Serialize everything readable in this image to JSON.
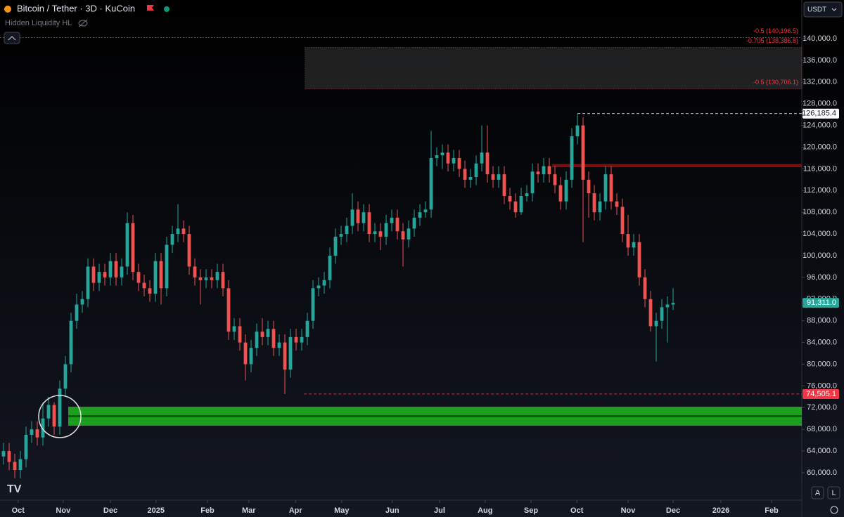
{
  "chart_data": {
    "type": "candlestick",
    "title": "Bitcoin / Tether · 3D · KuCoin",
    "indicator": "Hidden Liquidity HL",
    "currency": "USDT",
    "controls": [
      "A",
      "L"
    ],
    "up_color": "#26a69a",
    "down_color": "#ef5350",
    "xlim": [
      -0.625,
      141.875
    ],
    "ylim": [
      54950,
      147120
    ],
    "xticks": [
      {
        "value": 2.6,
        "label": "Oct"
      },
      {
        "value": 10.6,
        "label": "Nov"
      },
      {
        "value": 19,
        "label": "Dec"
      },
      {
        "value": 27.1,
        "label": "2025"
      },
      {
        "value": 36.25,
        "label": "Feb"
      },
      {
        "value": 43.6,
        "label": "Mar"
      },
      {
        "value": 51.9,
        "label": "Apr"
      },
      {
        "value": 60.1,
        "label": "May"
      },
      {
        "value": 69.1,
        "label": "Jun"
      },
      {
        "value": 77.5,
        "label": "Jul"
      },
      {
        "value": 85.6,
        "label": "Aug"
      },
      {
        "value": 93.75,
        "label": "Sep"
      },
      {
        "value": 101.9,
        "label": "Oct"
      },
      {
        "value": 111,
        "label": "Nov"
      },
      {
        "value": 119,
        "label": "Dec"
      },
      {
        "value": 127.5,
        "label": "2026"
      },
      {
        "value": 136.5,
        "label": "Feb"
      }
    ],
    "yticks": [
      {
        "value": 60000,
        "label": "60,000.0"
      },
      {
        "value": 64000,
        "label": "64,000.0"
      },
      {
        "value": 68000,
        "label": "68,000.0"
      },
      {
        "value": 72000,
        "label": "72,000.0"
      },
      {
        "value": 76000,
        "label": "76,000.0"
      },
      {
        "value": 80000,
        "label": "80,000.0"
      },
      {
        "value": 84000,
        "label": "84,000.0"
      },
      {
        "value": 88000,
        "label": "88,000.0"
      },
      {
        "value": 92000,
        "label": "92,000.0"
      },
      {
        "value": 96000,
        "label": "96,000.0"
      },
      {
        "value": 100000,
        "label": "100,000.0"
      },
      {
        "value": 104000,
        "label": "104,000.0"
      },
      {
        "value": 108000,
        "label": "108,000.0"
      },
      {
        "value": 112000,
        "label": "112,000.0"
      },
      {
        "value": 116000,
        "label": "116,000.0"
      },
      {
        "value": 120000,
        "label": "120,000.0"
      },
      {
        "value": 124000,
        "label": "124,000.0"
      },
      {
        "value": 128000,
        "label": "128,000.0"
      },
      {
        "value": 132000,
        "label": "132,000.0"
      },
      {
        "value": 136000,
        "label": "136,000.0"
      },
      {
        "value": 140000,
        "label": "140,000.0"
      }
    ],
    "candles": [
      [
        63000,
        65500,
        61500,
        64000
      ],
      [
        64000,
        65500,
        60500,
        62000
      ],
      [
        62000,
        63500,
        59000,
        60500
      ],
      [
        60500,
        64000,
        59000,
        62500
      ],
      [
        62500,
        68500,
        61000,
        67000
      ],
      [
        67000,
        69500,
        65500,
        68000
      ],
      [
        68000,
        69500,
        65000,
        66500
      ],
      [
        66500,
        73000,
        65000,
        70000
      ],
      [
        70000,
        74000,
        68500,
        72500
      ],
      [
        72500,
        73000,
        67000,
        68500
      ],
      [
        68500,
        77000,
        67000,
        75500
      ],
      [
        75500,
        81500,
        74000,
        80000
      ],
      [
        80000,
        89500,
        78500,
        88000
      ],
      [
        88000,
        93000,
        86500,
        91000
      ],
      [
        91000,
        93500,
        89500,
        92000
      ],
      [
        92000,
        99500,
        90500,
        98000
      ],
      [
        98000,
        99500,
        93500,
        95000
      ],
      [
        95000,
        98500,
        93500,
        97000
      ],
      [
        97000,
        98500,
        94500,
        96000
      ],
      [
        96000,
        100500,
        94500,
        99000
      ],
      [
        99000,
        100500,
        94500,
        96000
      ],
      [
        96000,
        99500,
        94500,
        98000
      ],
      [
        98000,
        108000,
        96500,
        106000
      ],
      [
        106000,
        107500,
        95500,
        97000
      ],
      [
        97000,
        98500,
        93500,
        95000
      ],
      [
        95000,
        96500,
        92500,
        94000
      ],
      [
        94000,
        95500,
        91500,
        93000
      ],
      [
        93000,
        100500,
        91500,
        99000
      ],
      [
        99000,
        100500,
        91000,
        94000
      ],
      [
        94000,
        103500,
        92500,
        102000
      ],
      [
        102000,
        105500,
        100500,
        104000
      ],
      [
        104000,
        109500,
        102500,
        105000
      ],
      [
        105000,
        106500,
        102500,
        104000
      ],
      [
        104000,
        105500,
        96500,
        98000
      ],
      [
        98000,
        99500,
        94500,
        96000
      ],
      [
        96000,
        97500,
        91000,
        95500
      ],
      [
        95500,
        97500,
        94000,
        96000
      ],
      [
        96000,
        97500,
        94000,
        95500
      ],
      [
        95500,
        98500,
        94000,
        97000
      ],
      [
        97000,
        98500,
        92500,
        94000
      ],
      [
        94000,
        95500,
        84500,
        86000
      ],
      [
        86000,
        88500,
        84500,
        87000
      ],
      [
        87000,
        88500,
        82500,
        84000
      ],
      [
        84000,
        85500,
        77000,
        80000
      ],
      [
        80000,
        84500,
        78500,
        83000
      ],
      [
        83000,
        87500,
        81500,
        86000
      ],
      [
        86000,
        88500,
        83500,
        85000
      ],
      [
        85000,
        88000,
        83500,
        86500
      ],
      [
        86500,
        88000,
        81500,
        83000
      ],
      [
        83000,
        85500,
        81500,
        84000
      ],
      [
        84000,
        85500,
        74505.1,
        79000
      ],
      [
        79000,
        86500,
        77500,
        85000
      ],
      [
        85000,
        86500,
        82500,
        84000
      ],
      [
        84000,
        86500,
        82500,
        85000
      ],
      [
        85000,
        89500,
        83500,
        88000
      ],
      [
        88000,
        95500,
        86500,
        94000
      ],
      [
        94000,
        96000,
        92500,
        94500
      ],
      [
        94500,
        97000,
        93000,
        95500
      ],
      [
        95500,
        101500,
        94000,
        100000
      ],
      [
        100000,
        105000,
        98500,
        103500
      ],
      [
        103500,
        105500,
        102000,
        104000
      ],
      [
        104000,
        107000,
        102500,
        105500
      ],
      [
        105500,
        111500,
        104000,
        108500
      ],
      [
        108500,
        110000,
        104500,
        106000
      ],
      [
        106000,
        109500,
        104500,
        108000
      ],
      [
        108000,
        109500,
        102500,
        104000
      ],
      [
        104000,
        106000,
        102500,
        104500
      ],
      [
        104500,
        106000,
        101000,
        103500
      ],
      [
        103500,
        107500,
        102000,
        106000
      ],
      [
        106000,
        108500,
        104500,
        107000
      ],
      [
        107000,
        108500,
        103000,
        104500
      ],
      [
        104500,
        106000,
        98000,
        103000
      ],
      [
        103000,
        106500,
        101500,
        105000
      ],
      [
        105000,
        108500,
        103500,
        107000
      ],
      [
        107000,
        109500,
        105500,
        108000
      ],
      [
        108000,
        110000,
        107000,
        108500
      ],
      [
        108500,
        123000,
        107000,
        118000
      ],
      [
        118000,
        120000,
        116500,
        118500
      ],
      [
        118500,
        120500,
        116000,
        119000
      ],
      [
        119000,
        120500,
        115500,
        117000
      ],
      [
        117000,
        119500,
        115500,
        118000
      ],
      [
        118000,
        119500,
        114500,
        116000
      ],
      [
        116000,
        117500,
        112500,
        114000
      ],
      [
        114000,
        116000,
        112500,
        114500
      ],
      [
        114500,
        118500,
        113000,
        117000
      ],
      [
        117000,
        124000,
        115500,
        119000
      ],
      [
        119000,
        124000,
        113500,
        115000
      ],
      [
        115000,
        116500,
        112500,
        114000
      ],
      [
        114000,
        116500,
        112500,
        115000
      ],
      [
        115000,
        116500,
        109500,
        111000
      ],
      [
        111000,
        112500,
        108500,
        110000
      ],
      [
        110000,
        111500,
        107000,
        108000
      ],
      [
        108000,
        112500,
        107500,
        111000
      ],
      [
        111000,
        113000,
        110000,
        111500
      ],
      [
        111500,
        117000,
        110000,
        115500
      ],
      [
        115500,
        117000,
        113500,
        115000
      ],
      [
        115000,
        118000,
        113500,
        116500
      ],
      [
        116500,
        118000,
        113500,
        115000
      ],
      [
        115000,
        116500,
        111500,
        113000
      ],
      [
        113000,
        114500,
        108500,
        110000
      ],
      [
        110000,
        115500,
        108500,
        114000
      ],
      [
        114000,
        123500,
        112500,
        122000
      ],
      [
        122000,
        126185.4,
        120500,
        124000
      ],
      [
        124000,
        125500,
        102500,
        114000
      ],
      [
        114000,
        115500,
        107000,
        111500
      ],
      [
        111500,
        113000,
        106500,
        108000
      ],
      [
        108000,
        111500,
        106500,
        110000
      ],
      [
        110000,
        116500,
        108500,
        115000
      ],
      [
        115000,
        116500,
        108500,
        110000
      ],
      [
        110000,
        111500,
        107500,
        109000
      ],
      [
        109000,
        110500,
        102500,
        104000
      ],
      [
        104000,
        107500,
        100000,
        101500
      ],
      [
        101500,
        104000,
        100000,
        102500
      ],
      [
        102500,
        104000,
        94500,
        96000
      ],
      [
        96000,
        97500,
        90500,
        92000
      ],
      [
        92000,
        93500,
        86000,
        87000
      ],
      [
        87000,
        89500,
        80500,
        88000
      ],
      [
        88000,
        92000,
        86500,
        90500
      ],
      [
        90500,
        92500,
        84000,
        91000
      ],
      [
        91000,
        94000,
        90000,
        91311
      ]
    ],
    "fib_levels": [
      {
        "value": 140196.5,
        "label": "-0.5 (140,196.5)",
        "color": "#f23645"
      },
      {
        "value": 138386.8,
        "label": "-0.705 (138,386.8)",
        "color": "#f23645"
      },
      {
        "value": 130706.1,
        "label": "-0.5 (130,706.1)",
        "color": "#f23645"
      }
    ],
    "fib_box_start": 53.6,
    "zones": [
      {
        "low": 68670,
        "high": 72170,
        "color": "#1e9e1e"
      },
      {
        "low": 116300,
        "high": 116900,
        "color": "#7a1010"
      }
    ],
    "dashed_levels": [
      {
        "value": 126185.4,
        "start": 102,
        "color": "#ffffff"
      },
      {
        "value": 74505.1,
        "start": 53.4,
        "color": "#f23645"
      }
    ],
    "price_tags": [
      {
        "value": 126185.4,
        "label": "126,185.4",
        "color": "#ffffff",
        "text_color": "#131722"
      },
      {
        "value": 91311,
        "label": "91,311.0",
        "color": "#26a69a",
        "text_color": "#ffffff"
      },
      {
        "value": 74505.1,
        "label": "74,505.1",
        "color": "#f23645",
        "text_color": "#ffffff"
      }
    ]
  }
}
